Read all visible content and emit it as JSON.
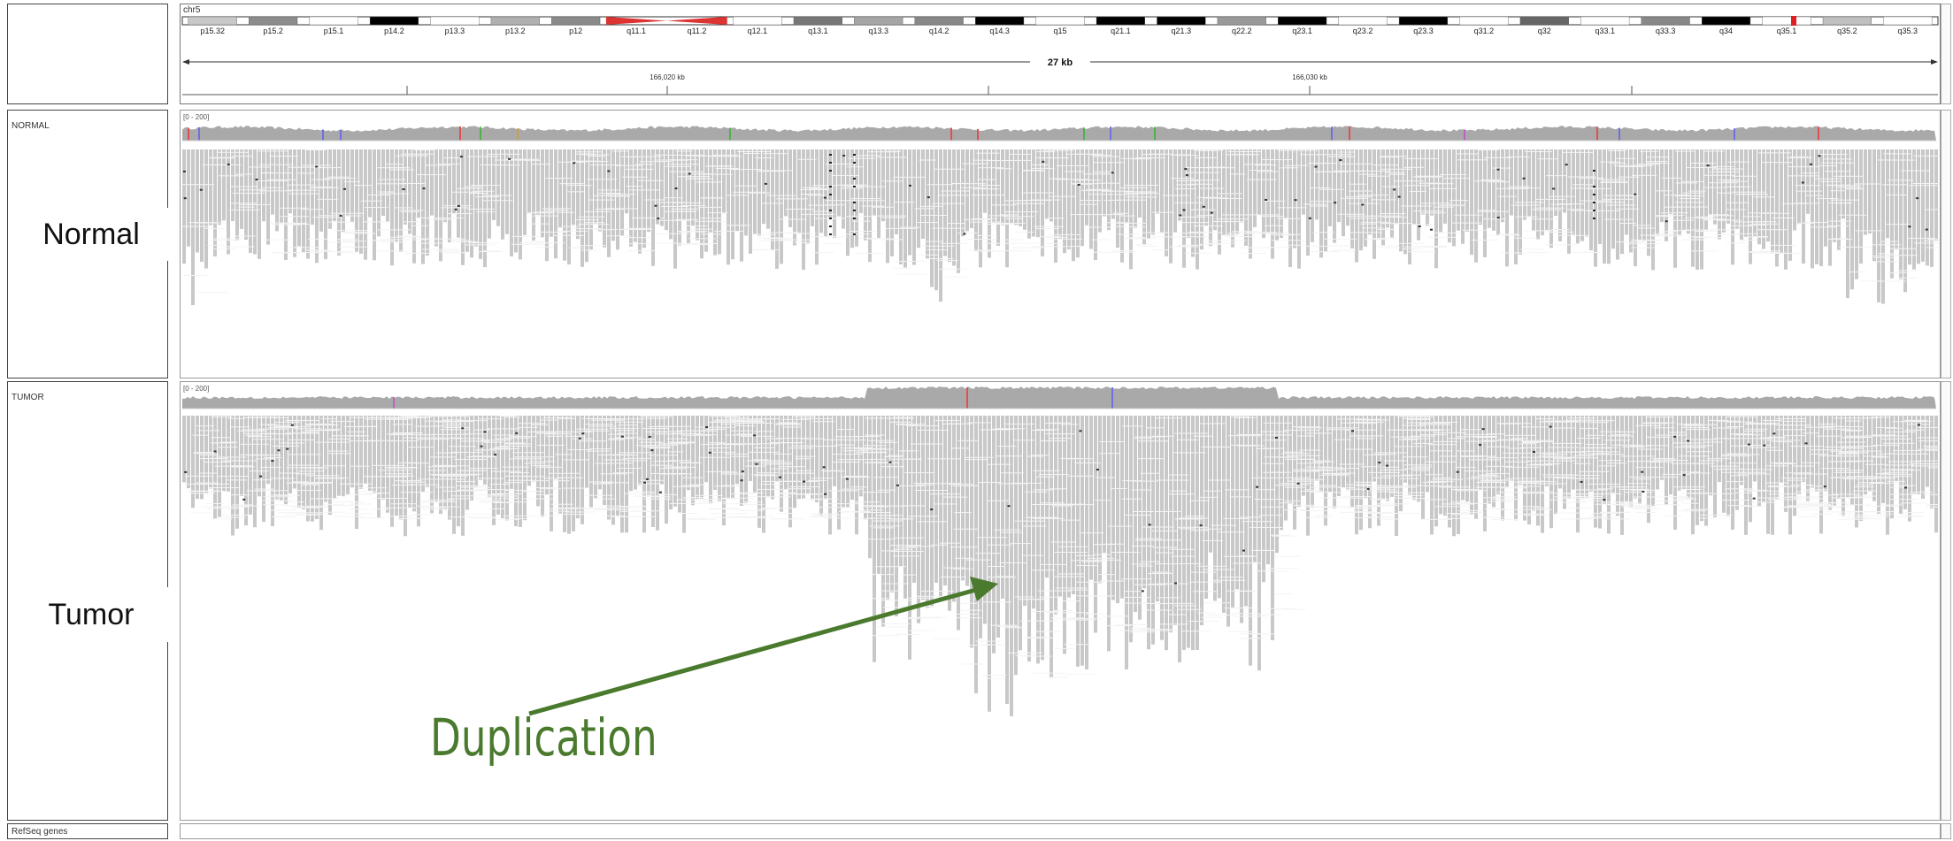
{
  "header": {
    "chromosome": "chr5",
    "bands": [
      "p15.32",
      "p15.2",
      "p15.1",
      "p14.2",
      "p13.3",
      "p13.2",
      "p12",
      "q11.1",
      "q11.2",
      "q12.1",
      "q13.1",
      "q13.3",
      "q14.2",
      "q14.3",
      "q15",
      "q21.1",
      "q21.3",
      "q22.2",
      "q23.1",
      "q23.2",
      "q23.3",
      "q31.2",
      "q32",
      "q33.1",
      "q33.3",
      "q34",
      "q35.1",
      "q35.2",
      "q35.3"
    ],
    "span": "27 kb",
    "ruler_ticks": [
      "166,020 kb",
      "166,030 kb"
    ]
  },
  "tracks": {
    "normal": {
      "name": "NORMAL",
      "label": "Normal",
      "range": "[0 - 200]"
    },
    "tumor": {
      "name": "TUMOR",
      "label": "Tumor",
      "range": "[0 - 200]"
    }
  },
  "footer": {
    "track": "RefSeq genes"
  },
  "annotation": {
    "text": "Duplication",
    "color": "#4a7a2d"
  }
}
